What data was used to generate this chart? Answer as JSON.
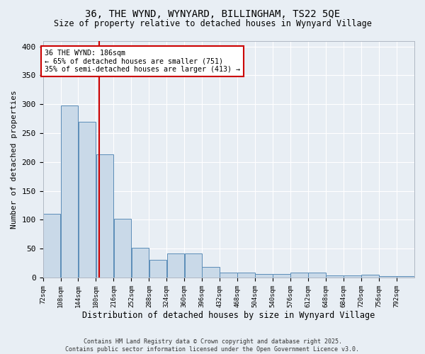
{
  "title1": "36, THE WYND, WYNYARD, BILLINGHAM, TS22 5QE",
  "title2": "Size of property relative to detached houses in Wynyard Village",
  "xlabel": "Distribution of detached houses by size in Wynyard Village",
  "ylabel": "Number of detached properties",
  "bar_color": "#c9d9e8",
  "bar_edge_color": "#5b8db8",
  "vline_color": "#cc0000",
  "vline_x": 186,
  "annotation_title": "36 THE WYND: 186sqm",
  "annotation_line1": "← 65% of detached houses are smaller (751)",
  "annotation_line2": "35% of semi-detached houses are larger (413) →",
  "annotation_box_color": "#ffffff",
  "annotation_box_edge": "#cc0000",
  "bins": [
    72,
    108,
    144,
    180,
    216,
    252,
    288,
    324,
    360,
    396,
    432,
    468,
    504,
    540,
    576,
    612,
    648,
    684,
    720,
    756,
    792
  ],
  "counts": [
    110,
    298,
    270,
    213,
    102,
    51,
    31,
    42,
    42,
    18,
    8,
    8,
    6,
    6,
    8,
    8,
    4,
    4,
    5,
    3,
    3
  ],
  "ylim": [
    0,
    410
  ],
  "yticks": [
    0,
    50,
    100,
    150,
    200,
    250,
    300,
    350,
    400
  ],
  "background_color": "#e8eef4",
  "grid_color": "#ffffff",
  "footer": "Contains HM Land Registry data © Crown copyright and database right 2025.\nContains public sector information licensed under the Open Government Licence v3.0."
}
